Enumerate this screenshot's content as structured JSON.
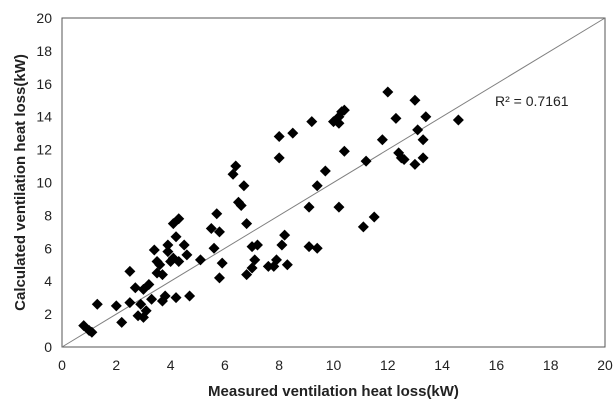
{
  "chart_data": {
    "type": "scatter",
    "xlabel": "Measured ventilation heat loss(kW)",
    "ylabel": "Calculated ventilation heat loss(kW)",
    "xlim": [
      0,
      20
    ],
    "ylim": [
      0,
      20
    ],
    "x_ticks": [
      "0",
      "2",
      "4",
      "6",
      "8",
      "10",
      "12",
      "14",
      "16",
      "18",
      "20"
    ],
    "y_ticks": [
      "0",
      "2",
      "4",
      "6",
      "8",
      "10",
      "12",
      "14",
      "16",
      "18",
      "20"
    ],
    "grid": false,
    "legend": "none",
    "marker": "diamond",
    "marker_color": "#000000",
    "reference_line": {
      "type": "y=x",
      "color": "#808080"
    },
    "annotation": "R² = 0.7161",
    "points": [
      [
        0.8,
        1.3
      ],
      [
        1.0,
        1.0
      ],
      [
        1.1,
        0.9
      ],
      [
        1.3,
        2.6
      ],
      [
        2.0,
        2.5
      ],
      [
        2.2,
        1.5
      ],
      [
        2.5,
        2.7
      ],
      [
        2.5,
        4.6
      ],
      [
        2.7,
        3.6
      ],
      [
        2.8,
        1.9
      ],
      [
        2.9,
        2.6
      ],
      [
        3.0,
        1.8
      ],
      [
        3.0,
        3.5
      ],
      [
        3.1,
        2.2
      ],
      [
        3.2,
        3.8
      ],
      [
        3.3,
        2.9
      ],
      [
        3.4,
        5.9
      ],
      [
        3.5,
        5.2
      ],
      [
        3.5,
        4.5
      ],
      [
        3.6,
        5.0
      ],
      [
        3.7,
        2.8
      ],
      [
        3.7,
        4.4
      ],
      [
        3.8,
        3.1
      ],
      [
        3.9,
        6.2
      ],
      [
        3.9,
        5.8
      ],
      [
        4.0,
        5.2
      ],
      [
        4.1,
        5.4
      ],
      [
        4.1,
        7.5
      ],
      [
        4.2,
        6.7
      ],
      [
        4.3,
        5.2
      ],
      [
        4.3,
        7.8
      ],
      [
        4.5,
        6.2
      ],
      [
        4.6,
        5.6
      ],
      [
        4.2,
        3.0
      ],
      [
        4.7,
        3.1
      ],
      [
        5.1,
        5.3
      ],
      [
        5.5,
        7.2
      ],
      [
        5.6,
        6.0
      ],
      [
        5.7,
        8.1
      ],
      [
        5.8,
        4.2
      ],
      [
        5.9,
        5.1
      ],
      [
        5.8,
        7.0
      ],
      [
        6.3,
        10.5
      ],
      [
        6.4,
        11.0
      ],
      [
        6.5,
        8.8
      ],
      [
        6.6,
        8.6
      ],
      [
        6.7,
        9.8
      ],
      [
        6.8,
        7.5
      ],
      [
        6.8,
        4.4
      ],
      [
        7.0,
        4.8
      ],
      [
        7.0,
        6.1
      ],
      [
        7.1,
        5.3
      ],
      [
        7.2,
        6.2
      ],
      [
        7.6,
        4.9
      ],
      [
        7.8,
        4.9
      ],
      [
        7.9,
        5.3
      ],
      [
        8.0,
        11.5
      ],
      [
        8.0,
        12.8
      ],
      [
        8.1,
        6.2
      ],
      [
        8.2,
        6.8
      ],
      [
        8.3,
        5.0
      ],
      [
        8.5,
        13.0
      ],
      [
        9.1,
        8.5
      ],
      [
        9.1,
        6.1
      ],
      [
        9.2,
        13.7
      ],
      [
        9.4,
        6.0
      ],
      [
        9.4,
        9.8
      ],
      [
        9.7,
        10.7
      ],
      [
        10.0,
        13.7
      ],
      [
        10.2,
        13.6
      ],
      [
        10.2,
        14.0
      ],
      [
        10.3,
        14.3
      ],
      [
        10.4,
        14.4
      ],
      [
        10.2,
        8.5
      ],
      [
        10.4,
        11.9
      ],
      [
        11.1,
        7.3
      ],
      [
        11.2,
        11.3
      ],
      [
        11.5,
        7.9
      ],
      [
        11.8,
        12.6
      ],
      [
        12.0,
        15.5
      ],
      [
        12.3,
        13.9
      ],
      [
        12.4,
        11.8
      ],
      [
        12.5,
        11.5
      ],
      [
        12.6,
        11.4
      ],
      [
        13.0,
        15.0
      ],
      [
        13.0,
        11.1
      ],
      [
        13.1,
        13.2
      ],
      [
        13.3,
        11.5
      ],
      [
        13.3,
        12.6
      ],
      [
        13.4,
        14.0
      ],
      [
        14.6,
        13.8
      ]
    ]
  }
}
